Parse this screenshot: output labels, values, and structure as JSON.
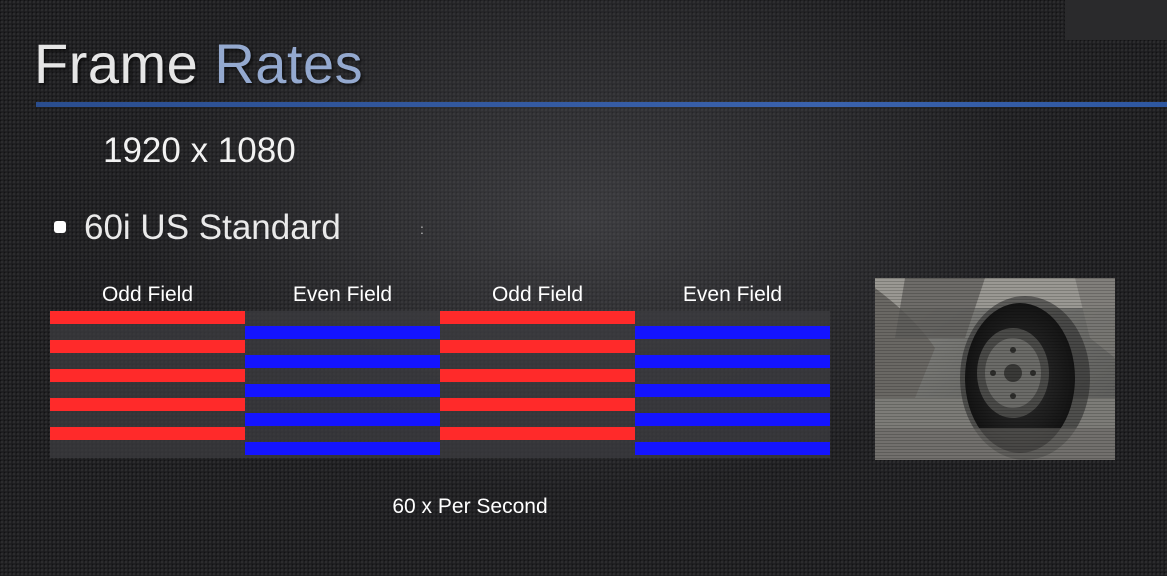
{
  "title": {
    "word1": "Frame",
    "word2": "Rates"
  },
  "resolution": "1920 x 1080",
  "bullet": {
    "text": "60i US Standard",
    "colon": ":"
  },
  "fields": [
    {
      "label": "Odd Field",
      "color": "red"
    },
    {
      "label": "Even Field",
      "color": "blue"
    },
    {
      "label": "Odd Field",
      "color": "red"
    },
    {
      "label": "Even Field",
      "color": "blue"
    }
  ],
  "rate_caption": "60 x Per Second",
  "colors": {
    "odd_line": "#ff2a2a",
    "even_line": "#1414ff",
    "title_accent": "#94a9cf",
    "rule": "#3a62ad"
  },
  "image": {
    "description_icon": "interlaced-wheel-photo"
  }
}
